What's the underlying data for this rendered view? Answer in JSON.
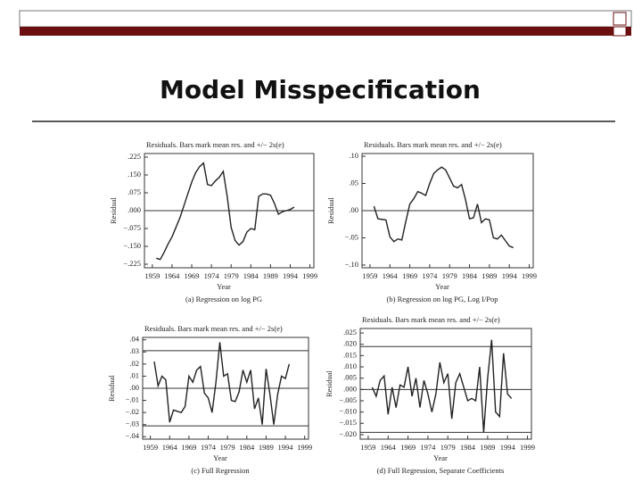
{
  "slide": {
    "title": "Model Misspecification"
  },
  "chart_data": [
    {
      "type": "line",
      "title": "Residuals. Bars mark mean res. and +/− 2s(e)",
      "ylabel": "Residual",
      "xlabel": "Year",
      "caption": "(a) Regression on log PG",
      "x": [
        1960,
        1961,
        1962,
        1963,
        1964,
        1965,
        1966,
        1967,
        1968,
        1969,
        1970,
        1971,
        1972,
        1973,
        1974,
        1975,
        1976,
        1977,
        1978,
        1979,
        1980,
        1981,
        1982,
        1983,
        1984,
        1985,
        1986,
        1987,
        1988,
        1989,
        1990,
        1991,
        1992,
        1993,
        1994,
        1995
      ],
      "values": [
        -0.2,
        -0.205,
        -0.175,
        -0.14,
        -0.11,
        -0.07,
        -0.03,
        0.02,
        0.07,
        0.12,
        0.16,
        0.185,
        0.2,
        0.11,
        0.105,
        0.125,
        0.14,
        0.165,
        0.06,
        -0.07,
        -0.125,
        -0.145,
        -0.13,
        -0.09,
        -0.075,
        -0.08,
        0.06,
        0.07,
        0.07,
        0.065,
        0.03,
        -0.015,
        -0.005,
        0.0,
        0.005,
        0.015
      ],
      "hlines": [
        0
      ],
      "color": "#222",
      "xlim": [
        1957,
        2000
      ],
      "xticks": [
        1959,
        1964,
        1969,
        1974,
        1979,
        1984,
        1989,
        1994,
        1999
      ],
      "ylim": [
        -0.24,
        0.24
      ],
      "yticks": [
        {
          "value": 0.225,
          "label": ".225"
        },
        {
          "value": 0.15,
          "label": ".150"
        },
        {
          "value": 0.075,
          "label": ".075"
        },
        {
          "value": 0,
          "label": ".000"
        },
        {
          "value": -0.075,
          "label": "−.075"
        },
        {
          "value": -0.15,
          "label": "−.150"
        },
        {
          "value": -0.225,
          "label": "−.225"
        }
      ]
    },
    {
      "type": "line",
      "title": "Residuals. Bars mark mean res. and +/− 2s(e)",
      "ylabel": "Residual",
      "xlabel": "Year",
      "caption": "(b) Regression on log PG, Log I/Pop",
      "x": [
        1960,
        1961,
        1962,
        1963,
        1964,
        1965,
        1966,
        1967,
        1968,
        1969,
        1970,
        1971,
        1972,
        1973,
        1974,
        1975,
        1976,
        1977,
        1978,
        1979,
        1980,
        1981,
        1982,
        1983,
        1984,
        1985,
        1986,
        1987,
        1988,
        1989,
        1990,
        1991,
        1992,
        1993,
        1994,
        1995
      ],
      "values": [
        0.008,
        -0.015,
        -0.016,
        -0.017,
        -0.048,
        -0.057,
        -0.052,
        -0.054,
        -0.02,
        0.012,
        0.022,
        0.035,
        0.032,
        0.028,
        0.05,
        0.068,
        0.075,
        0.08,
        0.075,
        0.06,
        0.045,
        0.042,
        0.048,
        0.02,
        -0.015,
        -0.013,
        0.012,
        -0.022,
        -0.015,
        -0.017,
        -0.05,
        -0.052,
        -0.045,
        -0.055,
        -0.065,
        -0.068
      ],
      "hlines": [
        0
      ],
      "color": "#222",
      "xlim": [
        1957,
        2000
      ],
      "xticks": [
        1959,
        1964,
        1969,
        1974,
        1979,
        1984,
        1989,
        1994,
        1999
      ],
      "ylim": [
        -0.105,
        0.105
      ],
      "yticks": [
        {
          "value": 0.1,
          "label": ".10"
        },
        {
          "value": 0.05,
          "label": ".05"
        },
        {
          "value": 0,
          "label": ".00"
        },
        {
          "value": -0.05,
          "label": "−.05"
        },
        {
          "value": -0.1,
          "label": "−.10"
        }
      ]
    },
    {
      "type": "line",
      "title": "Residuals. Bars mark mean res. and +/− 2s(e)",
      "ylabel": "Residual",
      "xlabel": "Year",
      "caption": "(c) Full Regression",
      "x": [
        1960,
        1961,
        1962,
        1963,
        1964,
        1965,
        1966,
        1967,
        1968,
        1969,
        1970,
        1971,
        1972,
        1973,
        1974,
        1975,
        1976,
        1977,
        1978,
        1979,
        1980,
        1981,
        1982,
        1983,
        1984,
        1985,
        1986,
        1987,
        1988,
        1989,
        1990,
        1991,
        1992,
        1993,
        1994,
        1995
      ],
      "values": [
        0.022,
        0.002,
        0.01,
        0.007,
        -0.028,
        -0.018,
        -0.019,
        -0.02,
        -0.015,
        0.01,
        0.005,
        0.015,
        0.018,
        -0.004,
        -0.008,
        -0.02,
        0.005,
        0.038,
        0.01,
        0.012,
        -0.01,
        -0.011,
        -0.003,
        0.015,
        0.005,
        0.015,
        -0.017,
        -0.008,
        -0.03,
        0.016,
        -0.005,
        -0.03,
        -0.005,
        0.01,
        0.008,
        0.02
      ],
      "hlines": [
        0.031,
        0,
        -0.031
      ],
      "color": "#222",
      "xlim": [
        1957,
        2000
      ],
      "xticks": [
        1959,
        1964,
        1969,
        1974,
        1979,
        1984,
        1989,
        1994,
        1999
      ],
      "ylim": [
        -0.042,
        0.042
      ],
      "yticks": [
        {
          "value": 0.04,
          "label": ".04"
        },
        {
          "value": 0.03,
          "label": ".03"
        },
        {
          "value": 0.02,
          "label": ".02"
        },
        {
          "value": 0.01,
          "label": ".01"
        },
        {
          "value": 0,
          "label": ".00"
        },
        {
          "value": -0.01,
          "label": "−.01"
        },
        {
          "value": -0.02,
          "label": "−.02"
        },
        {
          "value": -0.03,
          "label": "−.03"
        },
        {
          "value": -0.04,
          "label": "−.04"
        }
      ]
    },
    {
      "type": "line",
      "title": "Residuals. Bars mark mean res. and +/− 2s(e)",
      "ylabel": "Residual",
      "xlabel": "Year",
      "caption": "(d) Full Regression, Separate Coefficients",
      "x": [
        1960,
        1961,
        1962,
        1963,
        1964,
        1965,
        1966,
        1967,
        1968,
        1969,
        1970,
        1971,
        1972,
        1973,
        1974,
        1975,
        1976,
        1977,
        1978,
        1979,
        1980,
        1981,
        1982,
        1983,
        1984,
        1985,
        1986,
        1987,
        1988,
        1989,
        1990,
        1991,
        1992,
        1993,
        1994,
        1995
      ],
      "values": [
        0.001,
        -0.003,
        0.004,
        0.006,
        -0.011,
        0.001,
        -0.008,
        0.002,
        0.001,
        0.01,
        -0.003,
        0.005,
        -0.008,
        0.004,
        -0.002,
        -0.01,
        -0.002,
        0.012,
        0.003,
        0.007,
        -0.013,
        0.003,
        0.007,
        0.001,
        -0.005,
        -0.004,
        -0.005,
        0.01,
        -0.019,
        0.005,
        0.022,
        -0.01,
        -0.012,
        0.016,
        -0.002,
        -0.004
      ],
      "hlines": [
        0.019,
        0,
        -0.019
      ],
      "color": "#222",
      "xlim": [
        1957,
        2000
      ],
      "xticks": [
        1959,
        1964,
        1969,
        1974,
        1979,
        1984,
        1989,
        1994,
        1999
      ],
      "ylim": [
        -0.022,
        0.027
      ],
      "yticks": [
        {
          "value": 0.025,
          "label": ".025"
        },
        {
          "value": 0.02,
          "label": ".020"
        },
        {
          "value": 0.015,
          "label": ".015"
        },
        {
          "value": 0.01,
          "label": ".010"
        },
        {
          "value": 0.005,
          "label": ".005"
        },
        {
          "value": 0,
          "label": ".000"
        },
        {
          "value": -0.005,
          "label": "−.005"
        },
        {
          "value": -0.01,
          "label": "−.010"
        },
        {
          "value": -0.015,
          "label": "−.015"
        },
        {
          "value": -0.02,
          "label": "−.020"
        }
      ]
    }
  ]
}
